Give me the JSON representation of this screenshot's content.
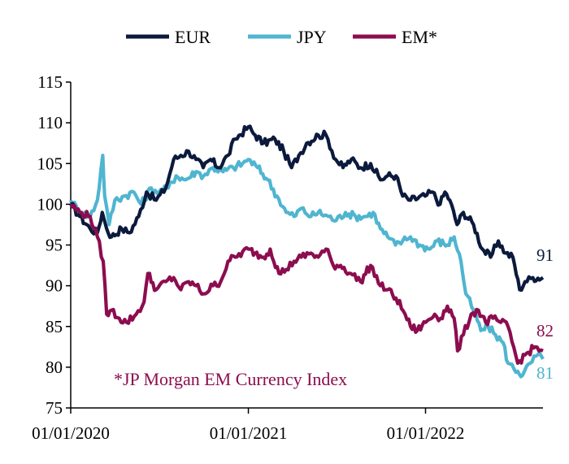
{
  "chart_data": {
    "type": "line",
    "title": "",
    "xlabel": "",
    "ylabel": "",
    "xlim": [
      "2020-01-01",
      "2022-08-31"
    ],
    "ylim": [
      75,
      115
    ],
    "y_ticks": [
      75,
      80,
      85,
      90,
      95,
      100,
      105,
      110,
      115
    ],
    "y_tick_labels": [
      "75",
      "80",
      "85",
      "90",
      "95",
      "100",
      "105",
      "110",
      "115"
    ],
    "x_ticks": [
      "2020-01-01",
      "2021-01-01",
      "2022-01-01"
    ],
    "x_tick_labels": [
      "01/01/2020",
      "01/01/2021",
      "01/01/2022"
    ],
    "grid": false,
    "legend_position": "top-center",
    "note": "*JP Morgan EM Currency Index",
    "series": [
      {
        "name": "EUR",
        "color": "#0b1a3c",
        "end_label": "91",
        "points": [
          [
            "2020-01-01",
            100
          ],
          [
            "2020-01-20",
            98.5
          ],
          [
            "2020-02-10",
            97
          ],
          [
            "2020-02-25",
            96.5
          ],
          [
            "2020-03-06",
            99
          ],
          [
            "2020-03-15",
            97
          ],
          [
            "2020-03-25",
            96
          ],
          [
            "2020-04-15",
            97
          ],
          [
            "2020-05-01",
            96.5
          ],
          [
            "2020-05-20",
            98.5
          ],
          [
            "2020-06-05",
            101.5
          ],
          [
            "2020-06-25",
            100.5
          ],
          [
            "2020-07-15",
            102
          ],
          [
            "2020-07-31",
            105.5
          ],
          [
            "2020-08-15",
            106
          ],
          [
            "2020-08-31",
            106.5
          ],
          [
            "2020-09-15",
            105.5
          ],
          [
            "2020-09-30",
            104.5
          ],
          [
            "2020-10-15",
            105.5
          ],
          [
            "2020-11-01",
            104.5
          ],
          [
            "2020-11-20",
            106
          ],
          [
            "2020-12-05",
            108
          ],
          [
            "2021-01-01",
            109.5
          ],
          [
            "2021-01-15",
            108.5
          ],
          [
            "2021-02-01",
            107.5
          ],
          [
            "2021-02-25",
            108
          ],
          [
            "2021-03-15",
            106.5
          ],
          [
            "2021-03-31",
            104.5
          ],
          [
            "2021-04-15",
            106
          ],
          [
            "2021-05-01",
            107.5
          ],
          [
            "2021-05-25",
            108.5
          ],
          [
            "2021-06-10",
            108.5
          ],
          [
            "2021-06-30",
            105.5
          ],
          [
            "2021-07-15",
            104.5
          ],
          [
            "2021-08-01",
            105.5
          ],
          [
            "2021-08-20",
            104.5
          ],
          [
            "2021-09-10",
            105
          ],
          [
            "2021-09-30",
            103
          ],
          [
            "2021-10-15",
            103.5
          ],
          [
            "2021-11-01",
            103.5
          ],
          [
            "2021-11-15",
            101
          ],
          [
            "2021-12-01",
            100.5
          ],
          [
            "2021-12-31",
            101
          ],
          [
            "2022-01-15",
            101.5
          ],
          [
            "2022-01-31",
            100
          ],
          [
            "2022-02-10",
            101.5
          ],
          [
            "2022-02-20",
            100.5
          ],
          [
            "2022-03-07",
            97.5
          ],
          [
            "2022-03-20",
            99
          ],
          [
            "2022-04-10",
            97.5
          ],
          [
            "2022-04-28",
            94.5
          ],
          [
            "2022-05-15",
            93.5
          ],
          [
            "2022-05-31",
            95.5
          ],
          [
            "2022-06-15",
            94
          ],
          [
            "2022-06-30",
            93.5
          ],
          [
            "2022-07-14",
            89.5
          ],
          [
            "2022-07-25",
            90.5
          ],
          [
            "2022-08-10",
            91
          ],
          [
            "2022-08-31",
            91
          ]
        ]
      },
      {
        "name": "JPY",
        "color": "#4fb5d0",
        "end_label": "81",
        "points": [
          [
            "2020-01-01",
            100.5
          ],
          [
            "2020-01-20",
            99
          ],
          [
            "2020-02-10",
            98.5
          ],
          [
            "2020-02-25",
            100.5
          ],
          [
            "2020-03-07",
            106
          ],
          [
            "2020-03-11",
            101
          ],
          [
            "2020-03-20",
            97.5
          ],
          [
            "2020-04-01",
            100.5
          ],
          [
            "2020-04-20",
            101
          ],
          [
            "2020-05-10",
            101.5
          ],
          [
            "2020-05-25",
            100
          ],
          [
            "2020-06-15",
            102
          ],
          [
            "2020-07-01",
            101.5
          ],
          [
            "2020-07-20",
            102
          ],
          [
            "2020-08-05",
            103.5
          ],
          [
            "2020-08-25",
            103
          ],
          [
            "2020-09-15",
            104
          ],
          [
            "2020-10-01",
            103.5
          ],
          [
            "2020-10-20",
            104.5
          ],
          [
            "2020-11-10",
            104
          ],
          [
            "2020-12-01",
            104.5
          ],
          [
            "2020-12-20",
            105
          ],
          [
            "2021-01-01",
            105.5
          ],
          [
            "2021-01-20",
            104.5
          ],
          [
            "2021-02-10",
            103
          ],
          [
            "2021-03-01",
            101
          ],
          [
            "2021-03-20",
            99
          ],
          [
            "2021-04-05",
            98.5
          ],
          [
            "2021-04-20",
            99.5
          ],
          [
            "2021-05-10",
            98.5
          ],
          [
            "2021-05-25",
            99
          ],
          [
            "2021-06-15",
            98.5
          ],
          [
            "2021-07-01",
            98
          ],
          [
            "2021-07-20",
            99
          ],
          [
            "2021-08-10",
            98.5
          ],
          [
            "2021-08-31",
            98.5
          ],
          [
            "2021-09-15",
            99
          ],
          [
            "2021-09-30",
            97
          ],
          [
            "2021-10-15",
            96
          ],
          [
            "2021-10-31",
            95
          ],
          [
            "2021-11-15",
            95.5
          ],
          [
            "2021-12-01",
            96
          ],
          [
            "2021-12-20",
            95
          ],
          [
            "2022-01-10",
            94.5
          ],
          [
            "2022-01-25",
            95.5
          ],
          [
            "2022-02-15",
            95
          ],
          [
            "2022-03-01",
            96
          ],
          [
            "2022-03-15",
            93
          ],
          [
            "2022-03-25",
            89
          ],
          [
            "2022-04-10",
            87
          ],
          [
            "2022-04-25",
            84.5
          ],
          [
            "2022-05-10",
            85
          ],
          [
            "2022-05-25",
            84
          ],
          [
            "2022-06-10",
            83
          ],
          [
            "2022-06-20",
            80.5
          ],
          [
            "2022-07-10",
            79.5
          ],
          [
            "2022-07-20",
            79
          ],
          [
            "2022-08-05",
            80.5
          ],
          [
            "2022-08-20",
            81.5
          ],
          [
            "2022-08-31",
            81
          ]
        ]
      },
      {
        "name": "EM*",
        "color": "#8c0d4f",
        "end_label": "82",
        "points": [
          [
            "2020-01-01",
            100
          ],
          [
            "2020-01-20",
            99
          ],
          [
            "2020-02-10",
            98.5
          ],
          [
            "2020-02-25",
            96
          ],
          [
            "2020-03-08",
            93
          ],
          [
            "2020-03-15",
            86.5
          ],
          [
            "2020-03-25",
            87
          ],
          [
            "2020-04-10",
            86
          ],
          [
            "2020-04-25",
            85.5
          ],
          [
            "2020-05-15",
            86.5
          ],
          [
            "2020-05-31",
            88
          ],
          [
            "2020-06-08",
            91.5
          ],
          [
            "2020-06-25",
            89.5
          ],
          [
            "2020-07-15",
            90.5
          ],
          [
            "2020-07-31",
            91
          ],
          [
            "2020-08-15",
            89.5
          ],
          [
            "2020-08-31",
            90.5
          ],
          [
            "2020-09-15",
            90
          ],
          [
            "2020-10-01",
            89
          ],
          [
            "2020-10-20",
            90
          ],
          [
            "2020-11-05",
            90.5
          ],
          [
            "2020-11-20",
            93
          ],
          [
            "2020-12-05",
            93.5
          ],
          [
            "2021-01-01",
            94.5
          ],
          [
            "2021-01-15",
            94
          ],
          [
            "2021-02-01",
            93.5
          ],
          [
            "2021-02-15",
            94.5
          ],
          [
            "2021-03-05",
            91.5
          ],
          [
            "2021-03-20",
            92
          ],
          [
            "2021-04-05",
            93
          ],
          [
            "2021-04-20",
            93.5
          ],
          [
            "2021-05-10",
            94
          ],
          [
            "2021-05-25",
            93.5
          ],
          [
            "2021-06-10",
            94.5
          ],
          [
            "2021-06-25",
            92.5
          ],
          [
            "2021-07-10",
            92.5
          ],
          [
            "2021-07-31",
            91.5
          ],
          [
            "2021-08-20",
            90.5
          ],
          [
            "2021-09-10",
            92.5
          ],
          [
            "2021-09-30",
            90
          ],
          [
            "2021-10-15",
            89.5
          ],
          [
            "2021-11-01",
            88.5
          ],
          [
            "2021-11-20",
            86.5
          ],
          [
            "2021-12-01",
            85
          ],
          [
            "2021-12-15",
            84.5
          ],
          [
            "2022-01-01",
            85.5
          ],
          [
            "2022-01-20",
            86.5
          ],
          [
            "2022-02-01",
            86
          ],
          [
            "2022-02-15",
            87.5
          ],
          [
            "2022-03-01",
            86
          ],
          [
            "2022-03-08",
            82
          ],
          [
            "2022-03-20",
            84
          ],
          [
            "2022-04-05",
            86.5
          ],
          [
            "2022-04-20",
            87
          ],
          [
            "2022-05-05",
            85.5
          ],
          [
            "2022-05-20",
            86
          ],
          [
            "2022-06-05",
            85.5
          ],
          [
            "2022-06-20",
            85
          ],
          [
            "2022-07-10",
            80.5
          ],
          [
            "2022-07-25",
            81.5
          ],
          [
            "2022-08-15",
            82.5
          ],
          [
            "2022-08-31",
            82
          ]
        ]
      }
    ]
  }
}
